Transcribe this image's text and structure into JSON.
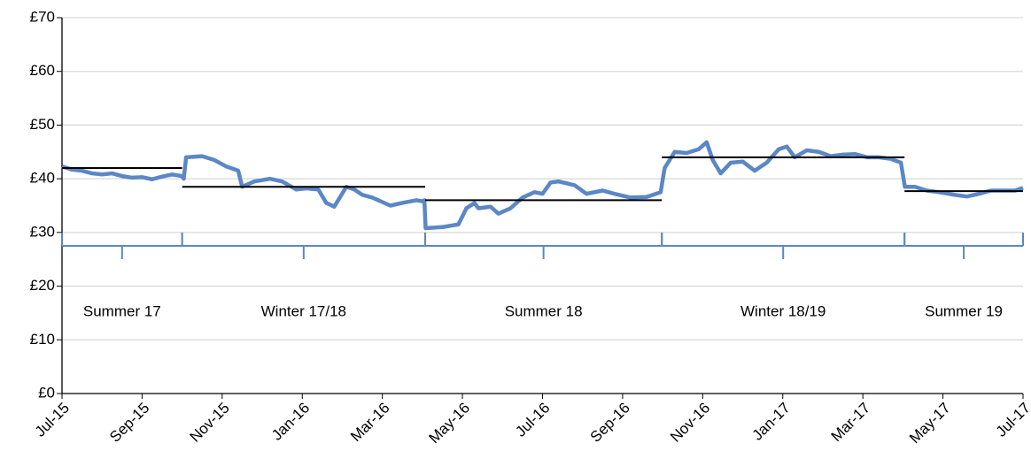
{
  "chart_data": {
    "type": "line",
    "xlim": [
      0,
      24
    ],
    "xticks": [
      {
        "value": 0,
        "label": "Jul-15"
      },
      {
        "value": 2,
        "label": "Sep-15"
      },
      {
        "value": 4,
        "label": "Nov-15"
      },
      {
        "value": 6,
        "label": "Jan-16"
      },
      {
        "value": 8,
        "label": "Mar-16"
      },
      {
        "value": 10,
        "label": "May-16"
      },
      {
        "value": 12,
        "label": "Jul-16"
      },
      {
        "value": 14,
        "label": "Sep-16"
      },
      {
        "value": 16,
        "label": "Nov-16"
      },
      {
        "value": 18,
        "label": "Jan-17"
      },
      {
        "value": 20,
        "label": "Mar-17"
      },
      {
        "value": 22,
        "label": "May-17"
      },
      {
        "value": 24,
        "label": "Jul-17"
      }
    ],
    "ylim": [
      0,
      70
    ],
    "yticks": [
      {
        "value": 0,
        "label": "£0"
      },
      {
        "value": 10,
        "label": "£10"
      },
      {
        "value": 20,
        "label": "£20"
      },
      {
        "value": 30,
        "label": "£30"
      },
      {
        "value": 40,
        "label": "£40"
      },
      {
        "value": 50,
        "label": "£50"
      },
      {
        "value": 60,
        "label": "£60"
      },
      {
        "value": 70,
        "label": "£70"
      }
    ],
    "grid": true,
    "color": "#5b87c5",
    "x": [
      0,
      0.25,
      0.5,
      0.75,
      1,
      1.25,
      1.5,
      1.75,
      2,
      2.25,
      2.5,
      2.75,
      3,
      3.04,
      3.1,
      3.5,
      3.8,
      4.1,
      4.4,
      4.5,
      4.8,
      5.2,
      5.5,
      5.85,
      6.1,
      6.4,
      6.6,
      6.8,
      7.1,
      7.3,
      7.5,
      7.75,
      8.2,
      8.5,
      8.85,
      9.0,
      9.05,
      9.08,
      9.5,
      9.9,
      10.1,
      10.3,
      10.4,
      10.7,
      10.9,
      11.2,
      11.5,
      11.8,
      12.0,
      12.2,
      12.4,
      12.8,
      13.1,
      13.5,
      13.8,
      14.2,
      14.6,
      14.95,
      15.05,
      15.3,
      15.6,
      15.9,
      16.1,
      16.25,
      16.45,
      16.7,
      17.0,
      17.3,
      17.6,
      17.9,
      18.1,
      18.3,
      18.6,
      18.9,
      19.2,
      19.5,
      19.8,
      20.1,
      20.4,
      20.7,
      20.95,
      21.05,
      21.3,
      21.6,
      21.9,
      22.3,
      22.6,
      22.9,
      23.2,
      23.5,
      23.8,
      24
    ],
    "series": [
      {
        "values": [
          42.3,
          41.7,
          41.5,
          41,
          40.8,
          41,
          40.5,
          40.2,
          40.3,
          39.9,
          40.4,
          40.8,
          40.5,
          40,
          44,
          44.2,
          43.5,
          42.3,
          41.5,
          38.5,
          39.5,
          40,
          39.5,
          38,
          38.2,
          38,
          35.5,
          34.8,
          38.5,
          38,
          37,
          36.5,
          35,
          35.5,
          36,
          35.8,
          36,
          30.8,
          31,
          31.5,
          34.5,
          35.5,
          34.5,
          34.8,
          33.5,
          34.5,
          36.5,
          37.5,
          37.2,
          39.3,
          39.5,
          38.8,
          37.2,
          37.8,
          37.2,
          36.5,
          36.6,
          37.5,
          42,
          45,
          44.8,
          45.5,
          46.8,
          43.5,
          41,
          43,
          43.2,
          41.5,
          43,
          45.5,
          46,
          44,
          45.3,
          45,
          44.2,
          44.5,
          44.6,
          44,
          44,
          43.7,
          43,
          38.5,
          38.5,
          37.8,
          37.5,
          37,
          36.7,
          37.2,
          37.8,
          37.8,
          37.8,
          38.3
        ]
      }
    ],
    "seasons": [
      {
        "label": "Summer 17",
        "start": 0,
        "end": 3,
        "average": 42
      },
      {
        "label": "Winter 17/18",
        "start": 3,
        "end": 9.07,
        "average": 38.5
      },
      {
        "label": "Summer 18",
        "start": 9.07,
        "end": 14.98,
        "average": 36
      },
      {
        "label": "Winter 18/19",
        "start": 14.98,
        "end": 21.04,
        "average": 44
      },
      {
        "label": "Summer 19",
        "start": 21.04,
        "end": 24,
        "average": 37.7
      }
    ]
  }
}
